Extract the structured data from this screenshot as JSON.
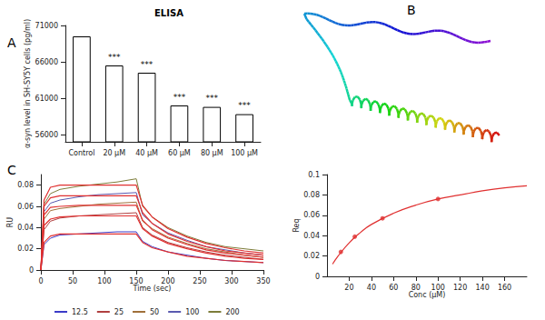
{
  "panel_labels": [
    "A",
    "B",
    "C"
  ],
  "chart_data": [
    {
      "type": "bar",
      "title": "ELISA",
      "y_label": "α-syn level in SH-SY5Y cells (pg/ml)",
      "categories": [
        "Control",
        "20 μM",
        "40 μM",
        "60 μM",
        "80 μM",
        "100 μM"
      ],
      "values": [
        69500,
        65500,
        64500,
        60000,
        59800,
        58800
      ],
      "significance": [
        null,
        "***",
        "***",
        "***",
        "***",
        "***"
      ],
      "color": "#ffffff",
      "ylim": [
        55000,
        71000
      ],
      "yticks": [
        56000,
        61000,
        66000,
        71000
      ],
      "grid": false
    },
    {
      "type": "line",
      "x_label": "Time (sec)",
      "y_label": "RU",
      "xlim": [
        0,
        350
      ],
      "xticks": [
        0,
        50,
        100,
        150,
        200,
        250,
        300,
        350
      ],
      "ylim": [
        0,
        0.09
      ],
      "yticks": [
        0,
        0.02,
        0.04,
        0.06,
        0.08
      ],
      "grid": false,
      "legend": "bottom",
      "series": [
        {
          "name": "12.5",
          "color": "#3b3bc8",
          "x": [
            0,
            5,
            15,
            30,
            60,
            90,
            120,
            150,
            160,
            175,
            200,
            230,
            260,
            290,
            320,
            350
          ],
          "values": [
            0,
            0.024,
            0.03,
            0.033,
            0.034,
            0.035,
            0.036,
            0.036,
            0.027,
            0.022,
            0.017,
            0.014,
            0.011,
            0.009,
            0.008,
            0.007
          ]
        },
        {
          "name": "25",
          "color": "#b04040",
          "x": [
            0,
            5,
            15,
            30,
            60,
            90,
            120,
            150,
            160,
            175,
            200,
            230,
            260,
            290,
            320,
            350
          ],
          "values": [
            0,
            0.038,
            0.046,
            0.049,
            0.051,
            0.052,
            0.053,
            0.054,
            0.04,
            0.033,
            0.026,
            0.021,
            0.017,
            0.014,
            0.012,
            0.01
          ]
        },
        {
          "name": "50",
          "color": "#a0703a",
          "x": [
            0,
            5,
            15,
            30,
            60,
            90,
            120,
            150,
            160,
            175,
            200,
            230,
            260,
            290,
            320,
            350
          ],
          "values": [
            0,
            0.048,
            0.056,
            0.058,
            0.06,
            0.062,
            0.063,
            0.064,
            0.046,
            0.039,
            0.031,
            0.025,
            0.02,
            0.017,
            0.014,
            0.012
          ]
        },
        {
          "name": "100",
          "color": "#5a5ab0",
          "x": [
            0,
            5,
            15,
            30,
            60,
            90,
            120,
            150,
            160,
            175,
            200,
            230,
            260,
            290,
            320,
            350
          ],
          "values": [
            0,
            0.055,
            0.063,
            0.066,
            0.069,
            0.071,
            0.072,
            0.073,
            0.052,
            0.044,
            0.035,
            0.028,
            0.022,
            0.019,
            0.016,
            0.014
          ]
        },
        {
          "name": "200",
          "color": "#7d7d3a",
          "x": [
            0,
            5,
            15,
            30,
            60,
            90,
            120,
            150,
            160,
            175,
            200,
            230,
            260,
            290,
            320,
            350
          ],
          "values": [
            0,
            0.062,
            0.072,
            0.076,
            0.079,
            0.081,
            0.083,
            0.086,
            0.06,
            0.05,
            0.04,
            0.032,
            0.026,
            0.022,
            0.02,
            0.018
          ]
        },
        {
          "type": "line",
          "color": "#e03030",
          "x": [
            0,
            5,
            15,
            30,
            60,
            90,
            120,
            150,
            160,
            175,
            200,
            230,
            260,
            290,
            320,
            350
          ],
          "values": [
            0,
            0.026,
            0.032,
            0.034,
            0.034,
            0.034,
            0.034,
            0.034,
            0.026,
            0.021,
            0.017,
            0.013,
            0.011,
            0.009,
            0.008,
            0.007
          ]
        },
        {
          "type": "line",
          "color": "#e03030",
          "x": [
            0,
            5,
            15,
            30,
            60,
            90,
            120,
            150,
            160,
            175,
            200,
            230,
            260,
            290,
            320,
            350
          ],
          "values": [
            0,
            0.042,
            0.048,
            0.05,
            0.051,
            0.051,
            0.051,
            0.051,
            0.039,
            0.032,
            0.025,
            0.02,
            0.016,
            0.013,
            0.011,
            0.01
          ]
        },
        {
          "type": "line",
          "color": "#e03030",
          "x": [
            0,
            5,
            15,
            30,
            60,
            90,
            120,
            150,
            160,
            175,
            200,
            230,
            260,
            290,
            320,
            350
          ],
          "values": [
            0,
            0.052,
            0.059,
            0.06,
            0.061,
            0.061,
            0.061,
            0.061,
            0.047,
            0.038,
            0.03,
            0.024,
            0.019,
            0.016,
            0.014,
            0.012
          ]
        },
        {
          "type": "line",
          "color": "#e03030",
          "x": [
            0,
            5,
            15,
            30,
            60,
            90,
            120,
            150,
            160,
            175,
            200,
            230,
            260,
            290,
            320,
            350
          ],
          "values": [
            0,
            0.06,
            0.068,
            0.07,
            0.07,
            0.07,
            0.07,
            0.07,
            0.054,
            0.044,
            0.034,
            0.027,
            0.022,
            0.018,
            0.016,
            0.014
          ]
        },
        {
          "type": "line",
          "color": "#e03030",
          "x": [
            0,
            5,
            15,
            30,
            60,
            90,
            120,
            150,
            160,
            175,
            200,
            230,
            260,
            290,
            320,
            350
          ],
          "values": [
            0,
            0.066,
            0.078,
            0.08,
            0.08,
            0.08,
            0.08,
            0.08,
            0.061,
            0.05,
            0.039,
            0.031,
            0.025,
            0.021,
            0.018,
            0.016
          ]
        }
      ]
    },
    {
      "type": "line",
      "x_label": "Conc (μM)",
      "y_label": "Req",
      "xlim": [
        0,
        180
      ],
      "xticks": [
        20,
        40,
        60,
        80,
        100,
        120,
        140,
        160
      ],
      "ylim": [
        0,
        0.1
      ],
      "yticks": [
        0,
        0.02,
        0.04,
        0.06,
        0.08,
        0.1
      ],
      "grid": false,
      "series": [
        {
          "type": "scatter",
          "color": "#e03030",
          "marker": "circle",
          "x": [
            12.5,
            25,
            50,
            100
          ],
          "values": [
            0.024,
            0.039,
            0.057,
            0.076
          ]
        },
        {
          "type": "line",
          "color": "#e03030",
          "x": [
            5,
            10,
            20,
            30,
            40,
            60,
            80,
            100,
            120,
            140,
            160,
            180
          ],
          "values": [
            0.012,
            0.02,
            0.033,
            0.043,
            0.051,
            0.062,
            0.07,
            0.076,
            0.08,
            0.084,
            0.087,
            0.089
          ]
        }
      ]
    }
  ]
}
